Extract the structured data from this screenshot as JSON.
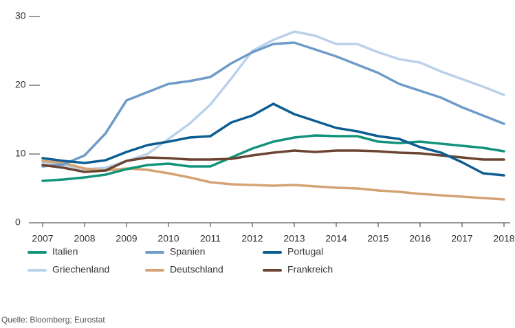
{
  "chart_data": {
    "type": "line",
    "x": [
      2007,
      2007.5,
      2008,
      2008.5,
      2009,
      2009.5,
      2010,
      2010.5,
      2011,
      2011.5,
      2012,
      2012.5,
      2013,
      2013.5,
      2014,
      2014.5,
      2015,
      2015.5,
      2016,
      2016.5,
      2017,
      2017.5,
      2018
    ],
    "xlim": [
      2007,
      2018
    ],
    "xticks": [
      2007,
      2008,
      2009,
      2010,
      2011,
      2012,
      2013,
      2014,
      2015,
      2016,
      2017,
      2018
    ],
    "ylim": [
      0,
      30
    ],
    "yticks": [
      0,
      10,
      20,
      30
    ],
    "grid": false,
    "series": [
      {
        "name": "Italien",
        "color": "#12937b",
        "values": [
          6.1,
          6.3,
          6.6,
          7.0,
          7.8,
          8.4,
          8.6,
          8.2,
          8.2,
          9.5,
          10.8,
          11.8,
          12.4,
          12.7,
          12.6,
          12.6,
          11.8,
          11.6,
          11.8,
          11.5,
          11.2,
          10.9,
          10.4
        ]
      },
      {
        "name": "Spanien",
        "color": "#6f9bc9",
        "values": [
          8.2,
          8.5,
          9.8,
          13.0,
          17.8,
          19.0,
          20.2,
          20.6,
          21.2,
          23.2,
          24.8,
          26.0,
          26.2,
          25.2,
          24.2,
          23.0,
          21.8,
          20.2,
          19.2,
          18.2,
          16.8,
          15.6,
          14.4
        ]
      },
      {
        "name": "Portugal",
        "color": "#0c5d91",
        "values": [
          9.4,
          9.0,
          8.7,
          9.1,
          10.3,
          11.3,
          11.8,
          12.4,
          12.6,
          14.6,
          15.6,
          17.3,
          15.8,
          14.8,
          13.8,
          13.3,
          12.6,
          12.2,
          11.0,
          10.2,
          8.8,
          7.2,
          6.9
        ]
      },
      {
        "name": "Griechenland",
        "color": "#bad1ea",
        "values": [
          8.8,
          8.4,
          7.8,
          8.0,
          9.0,
          10.0,
          12.2,
          14.4,
          17.2,
          21.0,
          25.0,
          26.6,
          27.8,
          27.2,
          26.0,
          26.0,
          24.8,
          23.8,
          23.3,
          22.0,
          20.9,
          19.8,
          18.6
        ]
      },
      {
        "name": "Deutschland",
        "color": "#d4a374",
        "values": [
          9.0,
          8.7,
          7.9,
          7.6,
          7.9,
          7.7,
          7.2,
          6.6,
          5.9,
          5.6,
          5.5,
          5.4,
          5.5,
          5.3,
          5.1,
          5.0,
          4.7,
          4.5,
          4.2,
          4.0,
          3.8,
          3.6,
          3.4
        ]
      },
      {
        "name": "Frankreich",
        "color": "#6b4431",
        "values": [
          8.4,
          8.0,
          7.4,
          7.6,
          9.0,
          9.5,
          9.4,
          9.2,
          9.2,
          9.3,
          9.8,
          10.2,
          10.5,
          10.3,
          10.5,
          10.5,
          10.4,
          10.2,
          10.1,
          9.8,
          9.5,
          9.2,
          9.2
        ]
      }
    ],
    "source": "Quelle: Bloomberg; Eurostat"
  }
}
